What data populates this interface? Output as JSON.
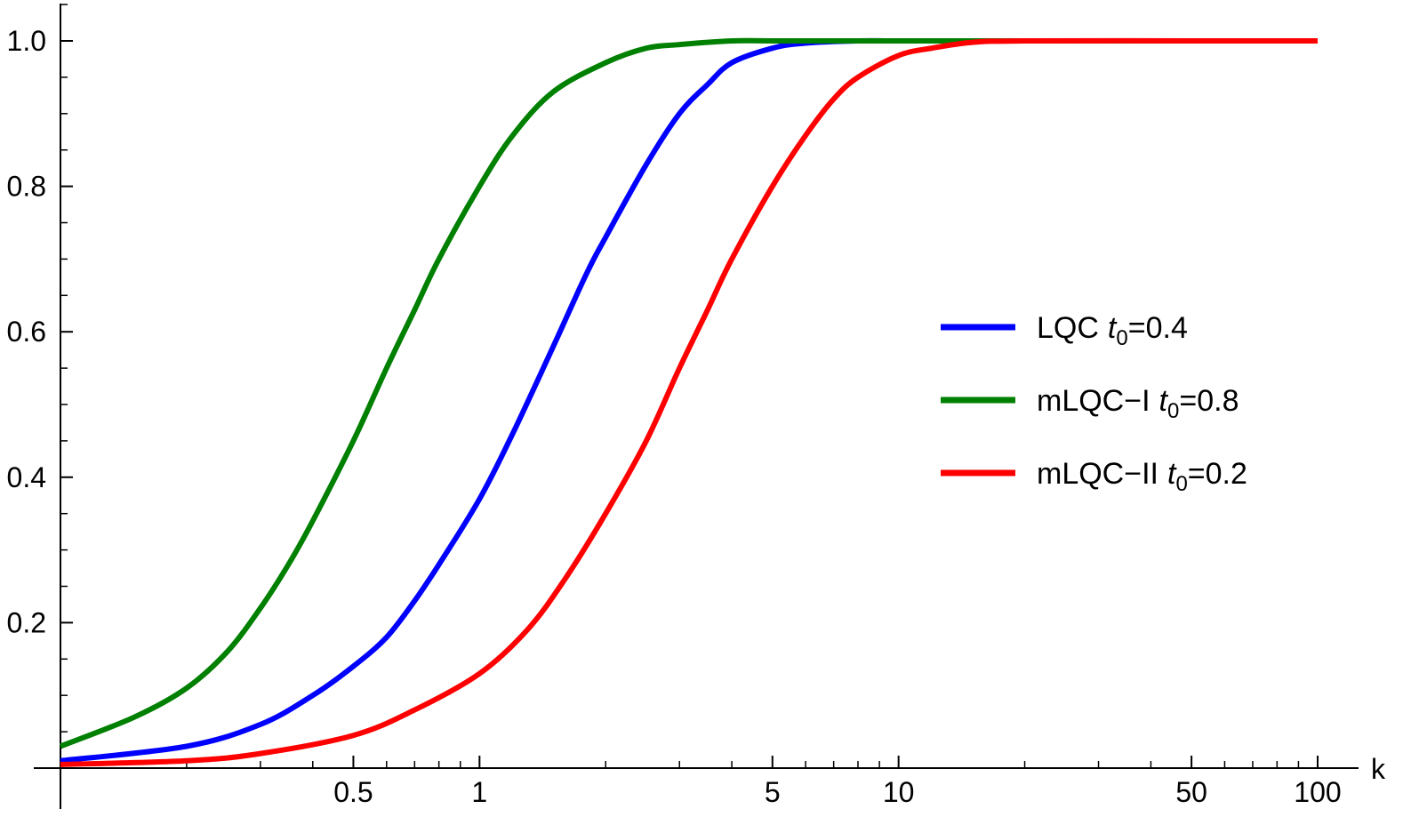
{
  "chart_data": {
    "type": "line",
    "title": "",
    "xlabel": "k",
    "ylabel": "",
    "x_scale": "log",
    "xlim": [
      0.1,
      100
    ],
    "ylim": [
      0,
      1.05
    ],
    "grid": false,
    "legend_position": "center-right",
    "x_ticks": [
      {
        "value": 0.5,
        "label": "0.5"
      },
      {
        "value": 1,
        "label": "1"
      },
      {
        "value": 5,
        "label": "5"
      },
      {
        "value": 10,
        "label": "10"
      },
      {
        "value": 50,
        "label": "50"
      },
      {
        "value": 100,
        "label": "100"
      }
    ],
    "y_ticks": [
      {
        "value": 0.2,
        "label": "0.2"
      },
      {
        "value": 0.4,
        "label": "0.4"
      },
      {
        "value": 0.6,
        "label": "0.6"
      },
      {
        "value": 0.8,
        "label": "0.8"
      },
      {
        "value": 1.0,
        "label": "1.0"
      }
    ],
    "series": [
      {
        "name": "LQC",
        "t0_label": "t",
        "t0_sub": "0",
        "t0_value": "=0.4",
        "color": "#0000ff",
        "x": [
          0.1,
          0.2,
          0.3,
          0.4,
          0.5,
          0.6,
          0.7,
          0.8,
          1.0,
          1.2,
          1.5,
          1.8,
          2.0,
          2.5,
          3.0,
          3.5,
          4.0,
          5.0,
          6.0,
          8.0,
          10,
          20,
          50,
          100
        ],
        "y": [
          0.01,
          0.03,
          0.06,
          0.1,
          0.14,
          0.18,
          0.23,
          0.28,
          0.37,
          0.46,
          0.58,
          0.68,
          0.73,
          0.83,
          0.9,
          0.94,
          0.97,
          0.99,
          0.997,
          1.0,
          1.0,
          1.0,
          1.0,
          1.0
        ]
      },
      {
        "name": "mLQC−I",
        "t0_label": "t",
        "t0_sub": "0",
        "t0_value": "=0.8",
        "color": "#008000",
        "x": [
          0.1,
          0.15,
          0.2,
          0.25,
          0.3,
          0.35,
          0.4,
          0.5,
          0.6,
          0.7,
          0.8,
          1.0,
          1.2,
          1.5,
          2.0,
          2.5,
          3.0,
          4.0,
          5.0,
          10,
          20,
          50,
          100
        ],
        "y": [
          0.03,
          0.07,
          0.11,
          0.16,
          0.22,
          0.28,
          0.34,
          0.45,
          0.55,
          0.63,
          0.7,
          0.8,
          0.87,
          0.93,
          0.97,
          0.99,
          0.995,
          1.0,
          1.0,
          1.0,
          1.0,
          1.0,
          1.0
        ]
      },
      {
        "name": "mLQC−II",
        "t0_label": "t",
        "t0_sub": "0",
        "t0_value": "=0.2",
        "color": "#ff0000",
        "x": [
          0.1,
          0.2,
          0.3,
          0.5,
          0.7,
          1.0,
          1.3,
          1.6,
          2.0,
          2.5,
          3.0,
          3.5,
          4.0,
          5.0,
          6.0,
          7.0,
          8.0,
          10,
          12,
          15,
          20,
          50,
          100
        ],
        "y": [
          0.005,
          0.01,
          0.02,
          0.045,
          0.08,
          0.13,
          0.19,
          0.26,
          0.35,
          0.45,
          0.55,
          0.63,
          0.7,
          0.8,
          0.87,
          0.92,
          0.95,
          0.98,
          0.99,
          0.998,
          1.0,
          1.0,
          1.0
        ]
      }
    ]
  }
}
